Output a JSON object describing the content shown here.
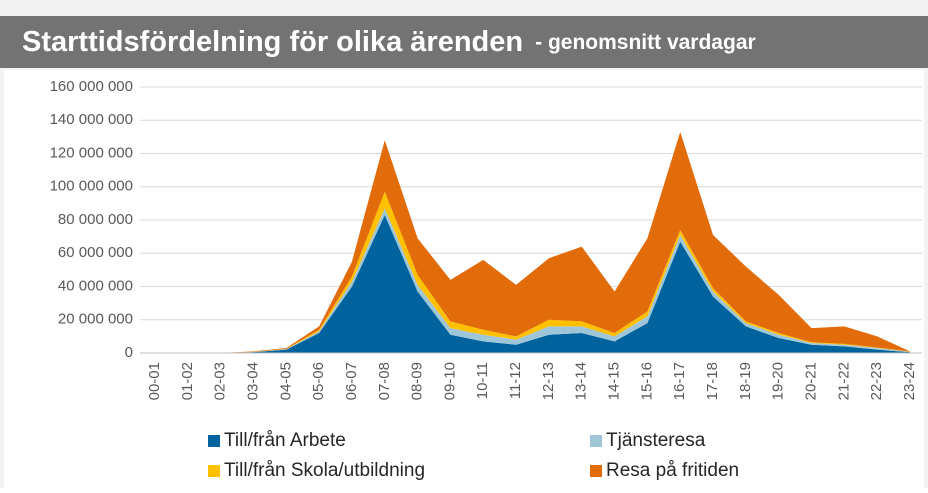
{
  "chart_data": {
    "type": "stacked_area",
    "title": "Starttidsfördelning för olika ärenden",
    "subtitle": "- genomsnitt vardagar",
    "categories": [
      "00-01",
      "01-02",
      "02-03",
      "03-04",
      "04-05",
      "05-06",
      "06-07",
      "07-08",
      "08-09",
      "09-10",
      "10-11",
      "11-12",
      "12-13",
      "13-14",
      "14-15",
      "15-16",
      "16-17",
      "17-18",
      "18-19",
      "19-20",
      "20-21",
      "21-22",
      "22-23",
      "23-24"
    ],
    "series": [
      {
        "name": "Till/från Arbete",
        "color": "#00639e",
        "values": [
          0,
          0,
          0,
          500000,
          2000000,
          12000000,
          40000000,
          83000000,
          37000000,
          11000000,
          7000000,
          5000000,
          11000000,
          12000000,
          7000000,
          18000000,
          67000000,
          34000000,
          16000000,
          9000000,
          5000000,
          4000000,
          2000000,
          500000
        ]
      },
      {
        "name": "Tjänsteresa",
        "color": "#9fc6d8",
        "values": [
          0,
          0,
          0,
          100000,
          300000,
          1000000,
          3000000,
          4000000,
          4000000,
          4000000,
          4000000,
          3000000,
          5000000,
          4000000,
          3000000,
          4000000,
          4000000,
          3000000,
          2000000,
          2000000,
          1000000,
          1000000,
          1000000,
          200000
        ]
      },
      {
        "name": "Till/från Skola/utbildning",
        "color": "#ffc000",
        "values": [
          0,
          0,
          0,
          100000,
          200000,
          1000000,
          3000000,
          10000000,
          6000000,
          4000000,
          3000000,
          2000000,
          4000000,
          3000000,
          2000000,
          3000000,
          3000000,
          2000000,
          1000000,
          1000000,
          500000,
          500000,
          300000,
          100000
        ]
      },
      {
        "name": "Resa på fritiden",
        "color": "#e36c0a",
        "values": [
          0,
          0,
          0,
          300000,
          500000,
          2000000,
          9000000,
          31000000,
          22000000,
          25000000,
          42000000,
          31000000,
          37000000,
          45000000,
          25000000,
          44000000,
          59000000,
          32000000,
          33000000,
          23000000,
          8500000,
          10500000,
          6700000,
          200000
        ]
      }
    ],
    "ylim": [
      0,
      160000000
    ],
    "yticks": [
      0,
      {
        "value": 20000000,
        "label": "20 000 000"
      },
      {
        "value": 40000000,
        "label": "40 000 000"
      },
      {
        "value": 60000000,
        "label": "60 000 000"
      },
      {
        "value": 80000000,
        "label": "80 000 000"
      },
      {
        "value": 100000000,
        "label": "100 000 000"
      },
      {
        "value": 120000000,
        "label": "120 000 000"
      },
      {
        "value": 140000000,
        "label": "140 000 000"
      },
      {
        "value": 160000000,
        "label": "160 000 000"
      }
    ],
    "grid": true
  }
}
